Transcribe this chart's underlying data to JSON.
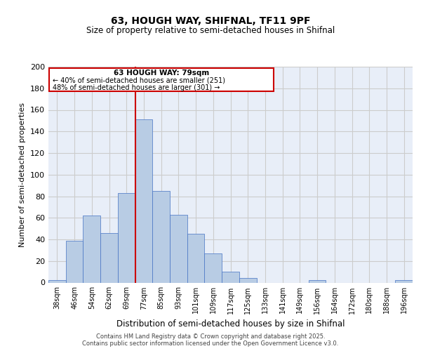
{
  "title": "63, HOUGH WAY, SHIFNAL, TF11 9PF",
  "subtitle": "Size of property relative to semi-detached houses in Shifnal",
  "xlabel": "Distribution of semi-detached houses by size in Shifnal",
  "ylabel": "Number of semi-detached properties",
  "categories": [
    "38sqm",
    "46sqm",
    "54sqm",
    "62sqm",
    "69sqm",
    "77sqm",
    "85sqm",
    "93sqm",
    "101sqm",
    "109sqm",
    "117sqm",
    "125sqm",
    "133sqm",
    "141sqm",
    "149sqm",
    "156sqm",
    "164sqm",
    "172sqm",
    "180sqm",
    "188sqm",
    "196sqm"
  ],
  "values": [
    2,
    39,
    62,
    46,
    83,
    151,
    85,
    63,
    45,
    27,
    10,
    4,
    0,
    0,
    0,
    2,
    0,
    0,
    0,
    0,
    2
  ],
  "bar_color": "#b8cce4",
  "bar_edge_color": "#4472c4",
  "property_label": "63 HOUGH WAY: 79sqm",
  "pct_smaller": 40,
  "pct_larger": 48,
  "n_smaller": 251,
  "n_larger": 301,
  "vline_color": "#cc0000",
  "vline_x_index": 4.5,
  "annotation_box_edge_color": "#cc0000",
  "ylim": [
    0,
    200
  ],
  "yticks": [
    0,
    20,
    40,
    60,
    80,
    100,
    120,
    140,
    160,
    180,
    200
  ],
  "grid_color": "#cccccc",
  "background_color": "#e8eef8",
  "footer_line1": "Contains HM Land Registry data © Crown copyright and database right 2025.",
  "footer_line2": "Contains public sector information licensed under the Open Government Licence v3.0."
}
